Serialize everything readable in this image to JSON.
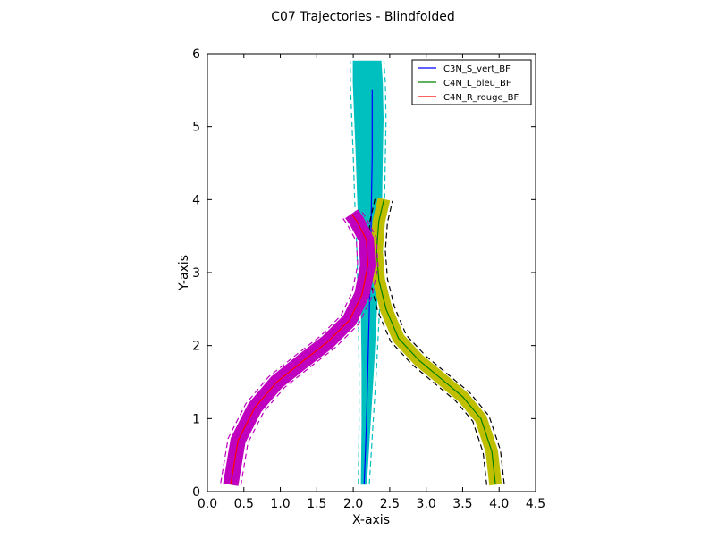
{
  "chart_data": {
    "type": "line",
    "title": "C07 Trajectories - Blindfolded",
    "xlabel": "X-axis",
    "ylabel": "Y-axis",
    "xlim": [
      0.0,
      4.5
    ],
    "ylim": [
      0,
      6
    ],
    "xticks": [
      "0.0",
      "0.5",
      "1.0",
      "1.5",
      "2.0",
      "2.5",
      "3.0",
      "3.5",
      "4.0",
      "4.5"
    ],
    "yticks": [
      "0",
      "1",
      "2",
      "3",
      "4",
      "5",
      "6"
    ],
    "grid": false,
    "legend_position": "top-right",
    "series": [
      {
        "name": "C3N_S_vert_BF",
        "color": "#0000ff",
        "band_color": "#00bfbf",
        "x": [
          2.15,
          2.18,
          2.2,
          2.22,
          2.24,
          2.25,
          2.26,
          2.26,
          2.26
        ],
        "y": [
          0.1,
          0.9,
          1.7,
          2.5,
          3.3,
          4.0,
          4.6,
          5.1,
          5.5
        ],
        "band_left": [
          2.11,
          2.12,
          2.12,
          2.11,
          2.09,
          2.06,
          2.04,
          2.02,
          2.0,
          2.0
        ],
        "band_right": [
          2.18,
          2.23,
          2.28,
          2.32,
          2.36,
          2.39,
          2.4,
          2.41,
          2.4,
          2.38
        ],
        "band_y": [
          0.1,
          0.9,
          1.7,
          2.5,
          3.3,
          4.0,
          4.6,
          5.1,
          5.6,
          5.9
        ]
      },
      {
        "name": "C4N_L_bleu_BF",
        "color": "#008000",
        "band_color": "#bfbf00",
        "x": [
          3.95,
          3.9,
          3.75,
          3.5,
          3.2,
          2.9,
          2.62,
          2.45,
          2.35,
          2.32,
          2.35,
          2.42
        ],
        "y": [
          0.1,
          0.55,
          1.0,
          1.3,
          1.55,
          1.8,
          2.1,
          2.5,
          2.9,
          3.3,
          3.7,
          4.0
        ],
        "band_width": 0.08
      },
      {
        "name": "C4N_R_rouge_BF",
        "color": "#ff0000",
        "band_color": "#bf00bf",
        "x": [
          0.32,
          0.42,
          0.65,
          0.95,
          1.3,
          1.65,
          1.95,
          2.12,
          2.2,
          2.18,
          2.05,
          1.98
        ],
        "y": [
          0.1,
          0.7,
          1.15,
          1.5,
          1.78,
          2.05,
          2.35,
          2.7,
          3.1,
          3.45,
          3.7,
          3.8
        ],
        "band_width": 0.1
      }
    ]
  }
}
